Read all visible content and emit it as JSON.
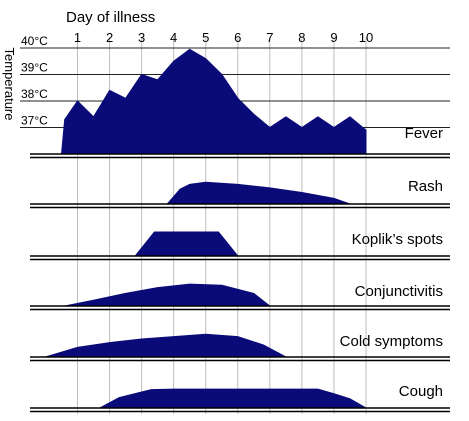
{
  "chart_data": {
    "type": "area",
    "title": "",
    "xlabel": "Day of illness",
    "ylabel": "Temperature",
    "x_ticks": [
      "1",
      "2",
      "3",
      "4",
      "5",
      "6",
      "7",
      "8",
      "9",
      "10"
    ],
    "xlim": [
      0.5,
      10
    ],
    "temperature_ticks": [
      {
        "value": 37,
        "label": "37°C"
      },
      {
        "value": 38,
        "label": "38°C"
      },
      {
        "value": 39,
        "label": "39°C"
      },
      {
        "value": 40,
        "label": "40°C"
      }
    ],
    "temperature_ylim": [
      36,
      40.3
    ],
    "grid": true,
    "series": [
      {
        "name": "Fever",
        "color": "#0a0a78",
        "x": [
          0.5,
          0.6,
          1.0,
          1.5,
          2.0,
          2.5,
          3.0,
          3.5,
          4.0,
          4.5,
          5.0,
          5.5,
          6.0,
          6.5,
          7.0,
          7.5,
          8.0,
          8.5,
          9.0,
          9.5,
          10.0
        ],
        "y": [
          36.0,
          37.3,
          38.0,
          37.4,
          38.4,
          38.1,
          39.0,
          38.8,
          39.5,
          39.95,
          39.6,
          39.0,
          38.1,
          37.5,
          37.0,
          37.4,
          37.0,
          37.4,
          37.0,
          37.4,
          36.9
        ]
      },
      {
        "name": "Rash",
        "color": "#0a0a78",
        "x": [
          3.8,
          4.2,
          4.5,
          5.0,
          6.0,
          7.0,
          8.0,
          9.0,
          9.5
        ],
        "y": [
          0,
          0.65,
          0.85,
          0.95,
          0.85,
          0.7,
          0.5,
          0.25,
          0
        ]
      },
      {
        "name": "Koplik’s spots",
        "color": "#0a0a78",
        "x": [
          2.8,
          3.4,
          5.4,
          6.0
        ],
        "y": [
          0,
          1,
          1,
          0
        ]
      },
      {
        "name": "Conjunctivitis",
        "color": "#0a0a78",
        "x": [
          0.6,
          1.5,
          2.5,
          3.5,
          4.5,
          5.5,
          6.5,
          7.0
        ],
        "y": [
          0,
          0.25,
          0.55,
          0.8,
          0.95,
          0.9,
          0.55,
          0
        ]
      },
      {
        "name": "Cold symptoms",
        "color": "#0a0a78",
        "x": [
          0.0,
          1.0,
          2.0,
          3.0,
          4.0,
          5.0,
          6.0,
          6.8,
          7.5
        ],
        "y": [
          0,
          0.4,
          0.6,
          0.75,
          0.85,
          0.95,
          0.85,
          0.5,
          0
        ]
      },
      {
        "name": "Cough",
        "color": "#0a0a78",
        "x": [
          1.7,
          2.3,
          3.3,
          4.0,
          5.0,
          6.0,
          7.0,
          8.0,
          8.5,
          9.0,
          9.5,
          10.0
        ],
        "y": [
          0,
          0.45,
          0.8,
          0.82,
          0.82,
          0.82,
          0.82,
          0.82,
          0.82,
          0.62,
          0.4,
          0
        ]
      }
    ]
  }
}
